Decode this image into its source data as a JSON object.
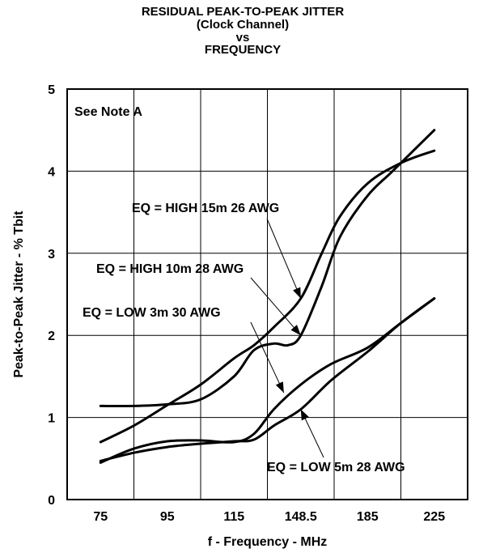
{
  "chart_data": {
    "type": "line",
    "title": [
      "RESIDUAL PEAK-TO-PEAK JITTER",
      "(Clock Channel)",
      "vs",
      "FREQUENCY"
    ],
    "xlabel": "f - Frequency - MHz",
    "ylabel": "Peak-to-Peak Jitter - % Tbit",
    "x_ticks": [
      "75",
      "95",
      "115",
      "148.5",
      "185",
      "225"
    ],
    "y_ticks": [
      "0",
      "1",
      "2",
      "3",
      "4",
      "5"
    ],
    "ylim": [
      0,
      5
    ],
    "grid": true,
    "note": "See Note A",
    "series": [
      {
        "name": "EQ = HIGH 15m 26 AWG",
        "points": [
          [
            75,
            0.7
          ],
          [
            85,
            0.9
          ],
          [
            95,
            1.15
          ],
          [
            105,
            1.4
          ],
          [
            115,
            1.72
          ],
          [
            125,
            1.88
          ],
          [
            135,
            2.1
          ],
          [
            148.5,
            2.45
          ],
          [
            160,
            3.0
          ],
          [
            170,
            3.45
          ],
          [
            185,
            3.85
          ],
          [
            205,
            4.1
          ],
          [
            225,
            4.25
          ]
        ]
      },
      {
        "name": "EQ = HIGH 10m 28 AWG",
        "points": [
          [
            75,
            1.14
          ],
          [
            85,
            1.14
          ],
          [
            95,
            1.16
          ],
          [
            105,
            1.22
          ],
          [
            115,
            1.5
          ],
          [
            125,
            1.82
          ],
          [
            135,
            1.9
          ],
          [
            142,
            1.88
          ],
          [
            148.5,
            2.0
          ],
          [
            160,
            2.6
          ],
          [
            170,
            3.2
          ],
          [
            185,
            3.7
          ],
          [
            200,
            4.0
          ],
          [
            225,
            4.5
          ]
        ]
      },
      {
        "name": "EQ = LOW 3m 30 AWG",
        "points": [
          [
            75,
            0.45
          ],
          [
            85,
            0.62
          ],
          [
            95,
            0.71
          ],
          [
            105,
            0.72
          ],
          [
            115,
            0.7
          ],
          [
            125,
            0.8
          ],
          [
            135,
            1.1
          ],
          [
            148.5,
            1.4
          ],
          [
            165,
            1.65
          ],
          [
            185,
            1.85
          ],
          [
            205,
            2.15
          ],
          [
            225,
            2.45
          ]
        ]
      },
      {
        "name": "EQ = LOW 5m 28 AWG",
        "points": [
          [
            75,
            0.47
          ],
          [
            85,
            0.57
          ],
          [
            95,
            0.64
          ],
          [
            105,
            0.68
          ],
          [
            115,
            0.71
          ],
          [
            125,
            0.73
          ],
          [
            135,
            0.9
          ],
          [
            148.5,
            1.1
          ],
          [
            165,
            1.45
          ],
          [
            185,
            1.8
          ],
          [
            205,
            2.15
          ],
          [
            225,
            2.45
          ]
        ]
      }
    ]
  }
}
